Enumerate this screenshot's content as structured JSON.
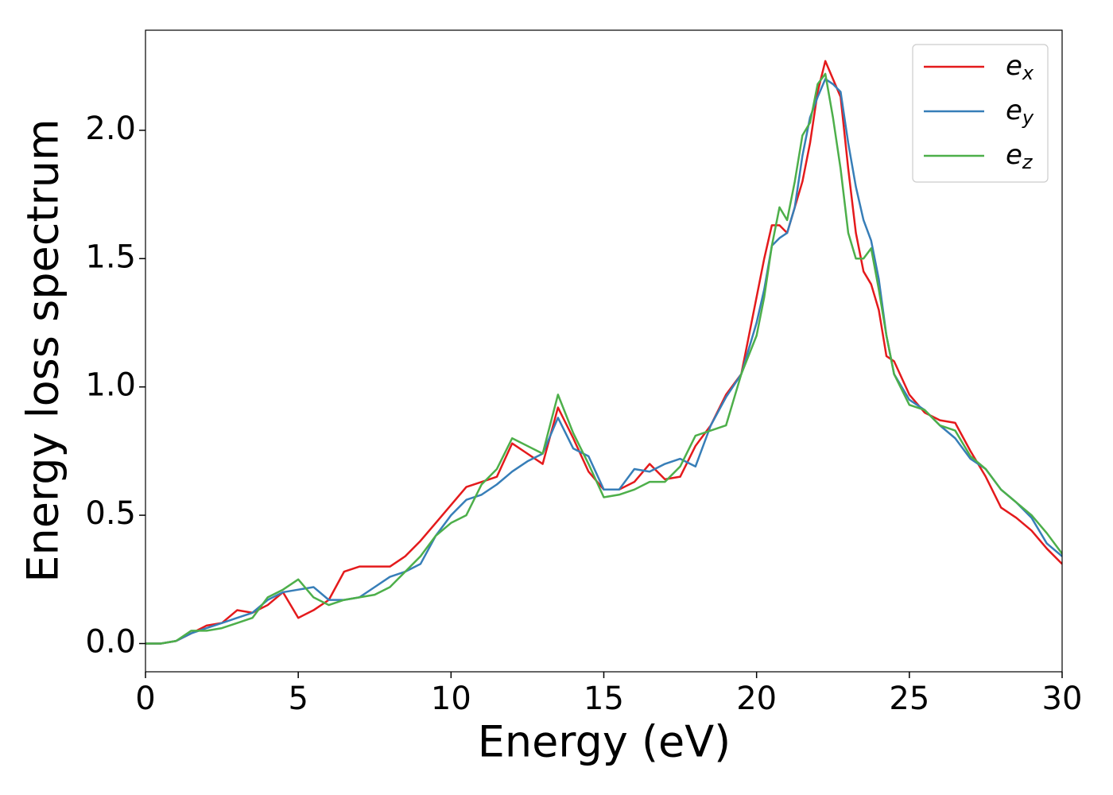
{
  "chart_data": {
    "type": "line",
    "xlabel": "Energy (eV)",
    "ylabel": "Energy loss spectrum",
    "x": [
      0,
      0.5,
      1,
      1.5,
      2,
      2.5,
      3,
      3.5,
      4,
      4.5,
      5,
      5.5,
      6,
      6.5,
      7,
      7.5,
      8,
      8.5,
      9,
      9.5,
      10,
      10.5,
      11,
      11.5,
      12,
      12.5,
      13,
      13.5,
      14,
      14.5,
      15,
      15.5,
      16,
      16.5,
      17,
      17.5,
      18,
      18.5,
      19,
      19.5,
      20,
      20.25,
      20.5,
      20.75,
      21,
      21.25,
      21.5,
      21.75,
      22,
      22.25,
      22.5,
      22.75,
      23,
      23.25,
      23.5,
      23.75,
      24,
      24.25,
      24.5,
      25,
      25.5,
      26,
      26.5,
      27,
      27.5,
      28,
      28.5,
      29,
      29.5,
      30
    ],
    "series": [
      {
        "name": "ex",
        "color": "#e41a1c",
        "values": [
          0,
          0,
          0.01,
          0.04,
          0.07,
          0.08,
          0.13,
          0.12,
          0.15,
          0.2,
          0.1,
          0.13,
          0.17,
          0.28,
          0.3,
          0.3,
          0.3,
          0.34,
          0.4,
          0.47,
          0.54,
          0.61,
          0.63,
          0.65,
          0.78,
          0.74,
          0.7,
          0.92,
          0.8,
          0.67,
          0.6,
          0.6,
          0.63,
          0.7,
          0.64,
          0.65,
          0.77,
          0.85,
          0.97,
          1.05,
          1.35,
          1.5,
          1.63,
          1.63,
          1.6,
          1.7,
          1.8,
          1.95,
          2.15,
          2.27,
          2.2,
          2.13,
          1.85,
          1.6,
          1.45,
          1.4,
          1.3,
          1.12,
          1.1,
          0.97,
          0.9,
          0.87,
          0.86,
          0.75,
          0.65,
          0.53,
          0.49,
          0.44,
          0.37,
          0.31
        ]
      },
      {
        "name": "ey",
        "color": "#377eb8",
        "values": [
          0,
          0,
          0.01,
          0.04,
          0.06,
          0.08,
          0.1,
          0.12,
          0.17,
          0.2,
          0.21,
          0.22,
          0.17,
          0.17,
          0.18,
          0.22,
          0.26,
          0.28,
          0.31,
          0.42,
          0.5,
          0.56,
          0.58,
          0.62,
          0.67,
          0.71,
          0.74,
          0.88,
          0.76,
          0.73,
          0.6,
          0.6,
          0.68,
          0.67,
          0.7,
          0.72,
          0.69,
          0.85,
          0.96,
          1.05,
          1.25,
          1.38,
          1.55,
          1.58,
          1.6,
          1.7,
          1.9,
          2.05,
          2.13,
          2.2,
          2.18,
          2.15,
          1.95,
          1.78,
          1.65,
          1.57,
          1.42,
          1.2,
          1.05,
          0.95,
          0.91,
          0.85,
          0.8,
          0.72,
          0.68,
          0.6,
          0.55,
          0.49,
          0.39,
          0.34
        ]
      },
      {
        "name": "ez",
        "color": "#4daf4a",
        "values": [
          0,
          0,
          0.01,
          0.05,
          0.05,
          0.06,
          0.08,
          0.1,
          0.18,
          0.21,
          0.25,
          0.18,
          0.15,
          0.17,
          0.18,
          0.19,
          0.22,
          0.28,
          0.34,
          0.42,
          0.47,
          0.5,
          0.62,
          0.68,
          0.8,
          0.77,
          0.74,
          0.97,
          0.82,
          0.7,
          0.57,
          0.58,
          0.6,
          0.63,
          0.63,
          0.69,
          0.81,
          0.83,
          0.85,
          1.05,
          1.2,
          1.35,
          1.55,
          1.7,
          1.65,
          1.8,
          1.98,
          2.03,
          2.18,
          2.22,
          2.05,
          1.85,
          1.6,
          1.5,
          1.5,
          1.54,
          1.38,
          1.2,
          1.05,
          0.93,
          0.91,
          0.85,
          0.83,
          0.73,
          0.68,
          0.6,
          0.55,
          0.5,
          0.43,
          0.35
        ]
      }
    ],
    "xlim": [
      0,
      30
    ],
    "xticks": [
      0,
      5,
      10,
      15,
      20,
      25,
      30
    ],
    "ylim": [
      -0.11,
      2.39
    ],
    "yticks": [
      {
        "value": 0,
        "label": "0.0"
      },
      0.5,
      {
        "value": 1,
        "label": "1.0"
      },
      1.5,
      {
        "value": 2,
        "label": "2.0"
      }
    ],
    "grid": false,
    "legend": "upper right"
  }
}
